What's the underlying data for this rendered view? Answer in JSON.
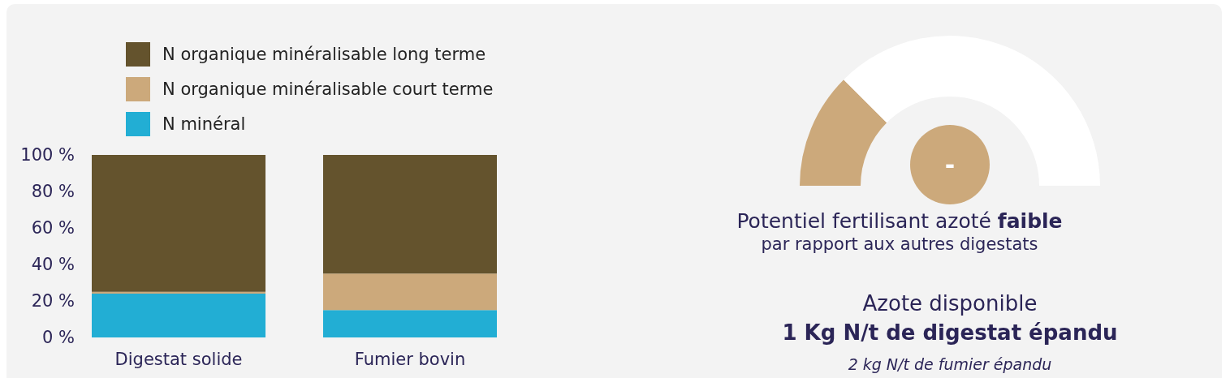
{
  "chart_data": [
    {
      "type": "bar",
      "stacked": true,
      "categories": [
        "Digestat solide",
        "Fumier bovin"
      ],
      "series": [
        {
          "name": "N minéral",
          "color": "#22aed4",
          "values": [
            24,
            15
          ]
        },
        {
          "name": "N organique minéralisable court terme",
          "color": "#cca97b",
          "values": [
            1,
            20
          ]
        },
        {
          "name": "N organique minéralisable long terme",
          "color": "#64532d",
          "values": [
            75,
            65
          ]
        }
      ],
      "ylim": [
        0,
        100
      ],
      "yticks": [
        {
          "value": 0,
          "label": "0 %"
        },
        {
          "value": 20,
          "label": "20 %"
        },
        {
          "value": 40,
          "label": "40 %"
        },
        {
          "value": 60,
          "label": "60 %"
        },
        {
          "value": 80,
          "label": "80 %"
        },
        {
          "value": 100,
          "label": "100 %"
        }
      ],
      "legend": "top",
      "grid": false
    },
    {
      "type": "donut",
      "categories": [
        null,
        null
      ],
      "values": [
        25,
        75
      ],
      "colors": [
        "#cca97b",
        "#ffffff"
      ],
      "annotations": [
        "-",
        "Potentiel fertilisant azoté ",
        "faible",
        "par rapport aux autres digestats",
        "Azote disponible",
        "1 Kg N/t de digestat épandu",
        "2 kg N/t de fumier épandu"
      ]
    }
  ]
}
